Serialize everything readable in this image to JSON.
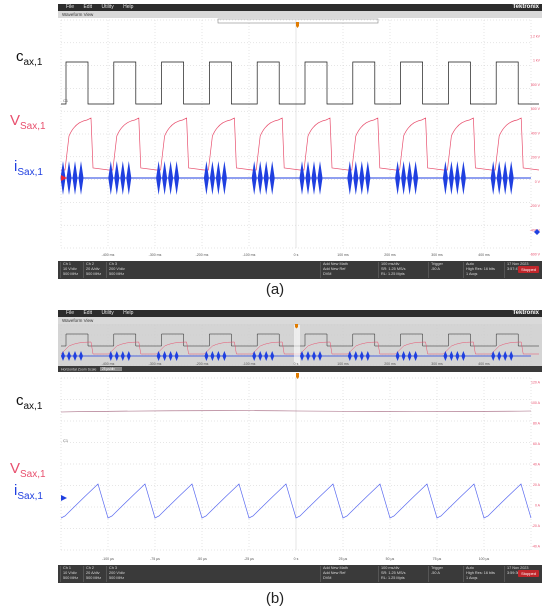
{
  "menu": [
    "File",
    "Edit",
    "Utility",
    "Help"
  ],
  "brand": "Tektronix",
  "waveform_view": "Waveform View",
  "stopped": "Stopped",
  "panel_a": {
    "caption": "(a)",
    "labels": {
      "cax_main": "c",
      "cax_sub": "ax,1",
      "vsax_main": "V",
      "vsax_sub": "Sax,1",
      "isax_main": "i",
      "isax_sub": "Sax,1"
    },
    "y_ticks": [
      "1.2 kV",
      "1 kV",
      "800 V",
      "600 V",
      "400 V",
      "200 V",
      "0 V",
      "-200 V",
      "-400 V",
      "-600 V"
    ],
    "x_ticks": [
      "-400 ms",
      "-300 ms",
      "-200 ms",
      "-100 ms",
      "0 s",
      "100 ms",
      "200 ms",
      "300 ms",
      "400 ms"
    ],
    "bottom": {
      "ch1": [
        "Ch 1",
        "10 V/div",
        "F1",
        "500 MHz"
      ],
      "ch2": [
        "Ch 2",
        "20 A/div",
        "1 MΩ",
        "500 MHz"
      ],
      "ch3": [
        "Ch 3",
        "200 V/div",
        "1 MΩ",
        "500 MHz"
      ],
      "add": [
        "Add New Math",
        "Add New Ref",
        "Add New Bus",
        "DVM"
      ],
      "horizontal": [
        "Horizontal",
        "100 ms/div",
        "SR: 1.25 MS/s",
        "RL: 1.25 Mpts"
      ],
      "trigger": [
        "Trigger",
        "-50 A"
      ],
      "acq": [
        "Acquisition",
        "Auto",
        "High Res: 16 bits",
        "1 Acqs"
      ],
      "date": [
        "17 Nov 2023",
        "3:57:47 PM"
      ]
    }
  },
  "panel_b": {
    "caption": "(b)",
    "labels": {
      "cax_main": "c",
      "cax_sub": "ax,1",
      "vsax_main": "V",
      "vsax_sub": "Sax,1",
      "isax_main": "i",
      "isax_sub": "Sax,1"
    },
    "y_ticks": [
      "120 A",
      "100 A",
      "80 A",
      "60 A",
      "40 A",
      "20 A",
      "0 A",
      "-20 A",
      "-40 A"
    ],
    "x_ticks": [
      "-100 µs",
      "-75 µs",
      "-50 µs",
      "-25 µs",
      "0 s",
      "25 µs",
      "50 µs",
      "75 µs",
      "100 µs"
    ],
    "overview_ticks": [
      "-400 ms",
      "-300 ms",
      "-200 ms",
      "-100 ms",
      "0 s",
      "100 ms",
      "200 ms",
      "300 ms",
      "400 ms"
    ],
    "zoom_label": "Horizontal Zoom Scale",
    "zoom_value": "25 µs/div",
    "bottom": {
      "ch1": [
        "Ch 1",
        "10 V/div",
        "F1",
        "500 MHz"
      ],
      "ch2": [
        "Ch 2",
        "20 A/div",
        "1 MΩ",
        "500 MHz"
      ],
      "ch3": [
        "Ch 3",
        "200 V/div",
        "1 MΩ",
        "500 MHz"
      ],
      "add": [
        "Add New Math",
        "Add New Ref",
        "Add New Bus",
        "DVM"
      ],
      "horizontal": [
        "Horizontal",
        "100 ms/div",
        "SR: 1.25 MS/s",
        "RL: 1.25 Mpts"
      ],
      "trigger": [
        "Trigger",
        "-50 A"
      ],
      "acq": [
        "Acquisition",
        "Auto",
        "High Res: 16 bits",
        "1 Acqs"
      ],
      "date": [
        "17 Nov 2023",
        "3:59:30 PM"
      ]
    }
  },
  "colors": {
    "ch1": "#1a1a1a",
    "ch2": "#1f3fe0",
    "ch3": "#e8506e",
    "grid": "#cccccc",
    "screen_bg": "#ffffff",
    "bar_dark": "#3a3a3a",
    "trigger": "#e07b00"
  },
  "icons": [
    "trigger-marker-icon",
    "stopped-badge"
  ]
}
